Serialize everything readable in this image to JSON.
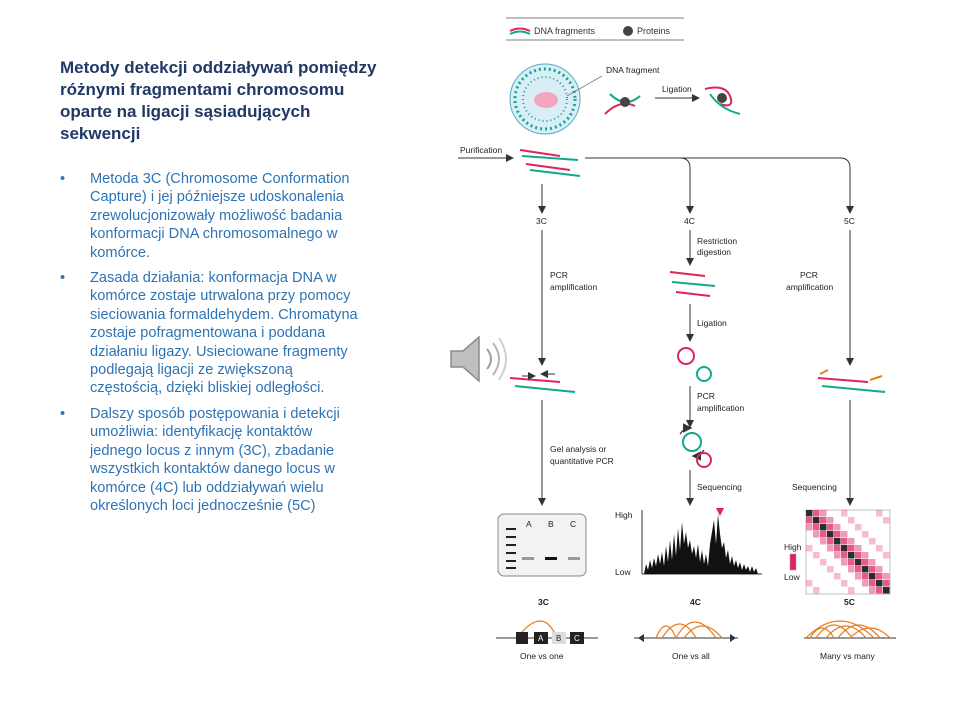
{
  "slide": {
    "title": "Metody detekcji oddziaływań pomiędzy różnymi fragmentami chromosomu oparte na ligacji sąsiadujących sekwencji",
    "bullets": [
      "Metoda 3C (Chromosome Conformation Capture) i jej późniejsze udoskonalenia zrewolucjonizowały możliwość badania konformacji DNA chromosomalnego w komórce.",
      "Zasada działania: konformacja DNA w komórce zostaje utrwalona przy pomocy sieciowania formaldehydem. Chromatyna zostaje pofragmentowana i poddana działaniu ligazy. Usieciowane fragmenty podlegają ligacji ze zwiększoną częstością, dzięki bliskiej odległości.",
      "Dalszy sposób postępowania i detekcji umożliwia: identyfikację kontaktów jednego locus z innym (3C),  zbadanie wszystkich kontaktów danego locus w komórce (4C) lub oddziaływań wielu określonych loci jednocześnie (5C)"
    ],
    "bullet_symbol": "•"
  },
  "diagram": {
    "legend": {
      "dna": "DNA fragments",
      "proteins": "Proteins"
    },
    "dna_fragment": "DNA fragment",
    "ligation": "Ligation",
    "purification": "Purification",
    "methods": {
      "m3c": "3C",
      "m4c": "4C",
      "m5c": "5C"
    },
    "steps": {
      "pcr1a": "PCR",
      "pcr1b": "amplification",
      "restr_a": "Restriction",
      "restr_b": "digestion",
      "ligation2": "Ligation",
      "pcr2a": "PCR",
      "pcr2b": "amplification",
      "pcr3a": "PCR",
      "pcr3b": "amplification",
      "gel_a": "Gel analysis or",
      "gel_b": "quantitative PCR",
      "seq4c": "Sequencing",
      "seq5c": "Sequencing"
    },
    "gel_lanes": {
      "a": "A",
      "b": "B",
      "c": "C"
    },
    "plot": {
      "high": "High",
      "low": "Low"
    },
    "heatmap": {
      "high": "High",
      "low": "Low"
    },
    "bottom": {
      "c3": "3C",
      "c4": "4C",
      "c5": "5C",
      "a": "A",
      "b": "B",
      "c": "C",
      "one_vs_one": "One vs one",
      "one_vs_all": "One vs all",
      "many_vs_many": "Many vs many"
    },
    "colors": {
      "pink": "#e0245e",
      "teal": "#12a88a",
      "orange": "#e67e22",
      "arrow": "#333333"
    }
  }
}
